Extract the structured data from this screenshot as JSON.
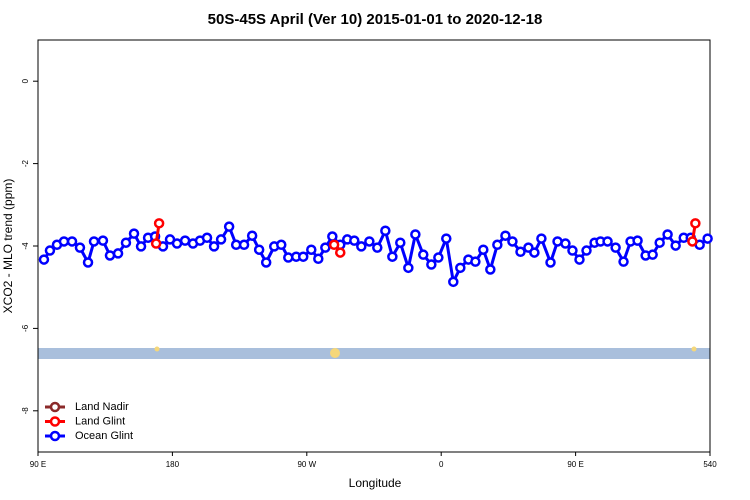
{
  "chart_data": {
    "type": "line",
    "title": "50S-45S April (Ver 10)   2015-01-01 to 2020-12-18",
    "xlabel": "Longitude",
    "ylabel": "XCO2 - MLO trend (ppm)",
    "xlim": [
      90,
      540
    ],
    "ylim": [
      -9,
      1
    ],
    "xticks": [
      {
        "value": 90,
        "label": "90 E"
      },
      180,
      {
        "value": 270,
        "label": "90 W"
      },
      {
        "value": 360,
        "label": "0"
      },
      {
        "value": 450,
        "label": "90 E"
      },
      540
    ],
    "yticks": [
      0,
      -2,
      -4,
      -6,
      -8
    ],
    "legend": "bottom-left",
    "series": [
      {
        "name": "Land Nadir",
        "color": "#8b2a2a",
        "x": [],
        "values": []
      },
      {
        "name": "Land Glint",
        "color": "#ff0000",
        "x": [
          169.1,
          171.1,
          280,
          288.3,
          292.4,
          520,
          528.2,
          530.2
        ],
        "values": [
          -3.94,
          -3.45,
          null,
          -3.97,
          -4.16,
          null,
          -3.89,
          -3.45
        ]
      },
      {
        "name": "Ocean Glint",
        "color": "#0000ff",
        "x": [
          94.0,
          98.0,
          102.7,
          107.4,
          112.8,
          118.1,
          123.5,
          127.5,
          133.5,
          138.2,
          143.6,
          148.9,
          154.3,
          159.0,
          163.7,
          168.4,
          173.7,
          178.4,
          183.1,
          188.5,
          193.8,
          198.5,
          203.2,
          207.9,
          212.6,
          218.0,
          222.7,
          228.0,
          233.4,
          238.1,
          242.8,
          248.2,
          252.9,
          257.6,
          262.9,
          267.6,
          273.0,
          277.7,
          282.4,
          287.1,
          292.4,
          297.1,
          301.8,
          306.5,
          311.9,
          317.2,
          322.6,
          327.3,
          332.6,
          338.0,
          342.7,
          348.0,
          353.4,
          358.1,
          363.4,
          368.1,
          372.8,
          378.2,
          382.9,
          388.2,
          392.9,
          397.6,
          403.0,
          407.7,
          413.1,
          418.4,
          422.4,
          427.1,
          433.2,
          437.9,
          443.2,
          447.9,
          452.6,
          457.3,
          462.7,
          466.7,
          471.4,
          476.8,
          482.1,
          486.8,
          491.5,
          496.9,
          501.6,
          506.3,
          511.6,
          517.0,
          522.4,
          527.1,
          533.1,
          538.4
        ],
        "values": [
          -4.33,
          -4.11,
          -3.97,
          -3.89,
          -3.89,
          -4.04,
          -4.4,
          -3.89,
          -3.87,
          -4.23,
          -4.18,
          -3.92,
          -3.7,
          -4.01,
          -3.8,
          -3.77,
          -4.01,
          -3.84,
          -3.94,
          -3.87,
          -3.94,
          -3.87,
          -3.8,
          -4.01,
          -3.84,
          -3.53,
          -3.97,
          -3.97,
          -3.75,
          -4.09,
          -4.4,
          -4.01,
          -3.97,
          -4.28,
          -4.26,
          -4.26,
          -4.09,
          -4.31,
          -4.04,
          -3.77,
          -3.97,
          -3.84,
          -3.87,
          -4.01,
          -3.89,
          -4.04,
          -3.63,
          -4.26,
          -3.92,
          -4.53,
          -3.72,
          -4.21,
          -4.45,
          -4.28,
          -3.82,
          -4.87,
          -4.53,
          -4.33,
          -4.38,
          -4.09,
          -4.57,
          -3.97,
          -3.75,
          -3.89,
          -4.14,
          -4.04,
          -4.16,
          -3.82,
          -4.4,
          -3.89,
          -3.94,
          -4.11,
          -4.33,
          -4.11,
          -3.92,
          -3.89,
          -3.89,
          -4.04,
          -4.38,
          -3.89,
          -3.87,
          -4.23,
          -4.21,
          -3.92,
          -3.72,
          -3.99,
          -3.8,
          -3.8,
          -3.97,
          -3.82
        ]
      }
    ]
  }
}
